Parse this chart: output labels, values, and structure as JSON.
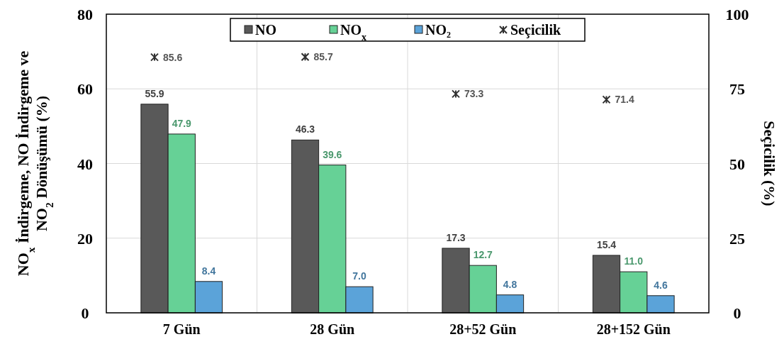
{
  "chart_data": {
    "type": "bar",
    "categories": [
      "7 Gün",
      "28 Gün",
      "28+52 Gün",
      "28+152 Gün"
    ],
    "ylabel": "NO$_{x}$ İndirgeme, NO İndirgeme ve\nNO$_{2}$ Dönüşümü (%)",
    "y2label": "Seçicilik (%)",
    "ylim": [
      0,
      80
    ],
    "yticks": [
      0,
      20,
      40,
      60,
      80
    ],
    "y2lim": [
      0,
      100
    ],
    "y2ticks": [
      0,
      25,
      50,
      75,
      100
    ],
    "grid": true,
    "legend": "top",
    "series": [
      {
        "name": "NO",
        "color": "#595959",
        "values": [
          55.9,
          46.3,
          17.3,
          15.4
        ],
        "value_labels": [
          "55.9",
          "46.3",
          "17.3",
          "15.4"
        ]
      },
      {
        "name": "NO$_{x}$",
        "color": "#66d196",
        "values": [
          47.9,
          39.6,
          12.7,
          11.0
        ],
        "value_labels": [
          "47.9",
          "39.6",
          "12.7",
          "11.0"
        ]
      },
      {
        "name": "NO₂",
        "color": "#5ba3d9",
        "values": [
          8.4,
          7.0,
          4.8,
          4.6
        ],
        "value_labels": [
          "8.4",
          "7.0",
          "4.8",
          "4.6"
        ]
      },
      {
        "name": "Seçicilik",
        "type": "scatter",
        "axis": "y2",
        "marker": "cross",
        "color": "#303030",
        "x": [
          "7 Gün",
          "28 Gün",
          "28+52 Gün",
          "28+152 Gün"
        ],
        "values": [
          85.6,
          85.7,
          73.3,
          71.4
        ],
        "value_labels": [
          "85.6",
          "85.7",
          "73.3",
          "71.4"
        ]
      }
    ]
  }
}
